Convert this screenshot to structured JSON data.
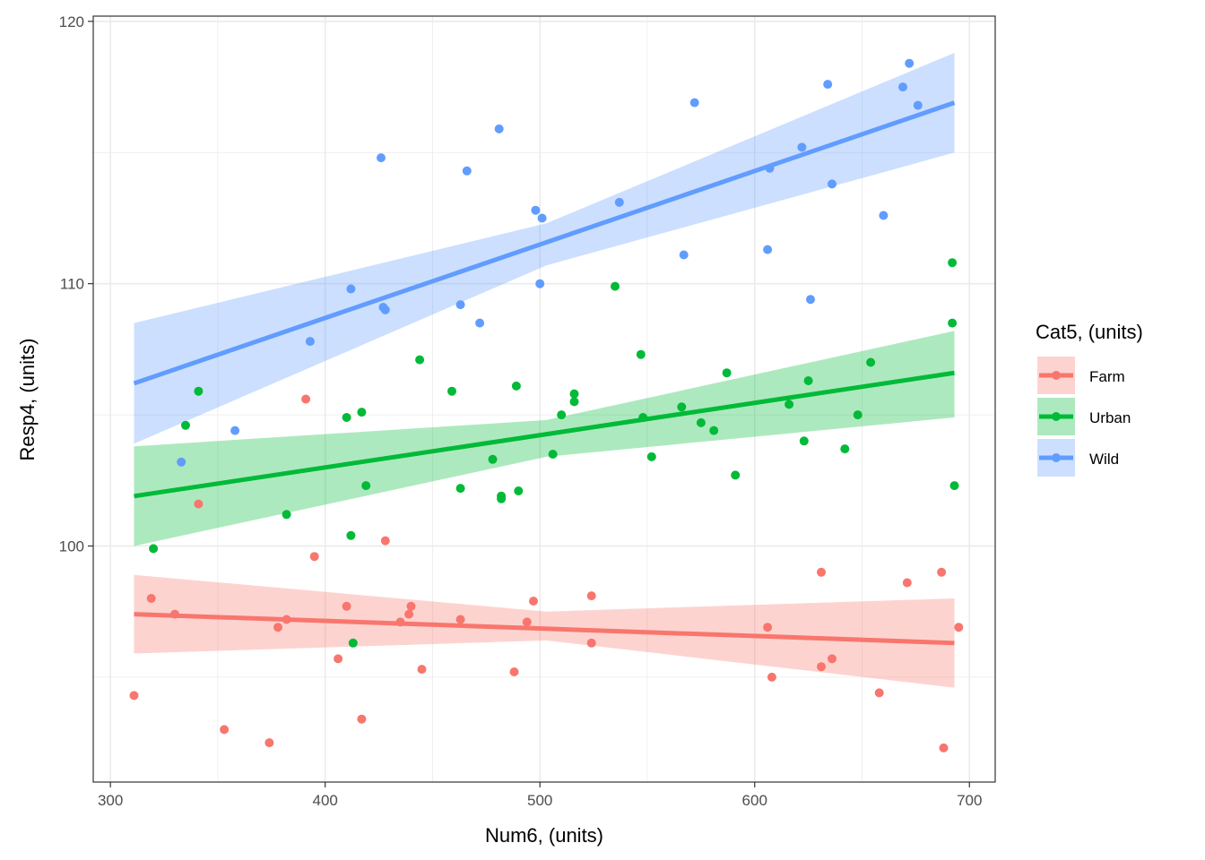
{
  "chart_data": {
    "type": "scatter",
    "title": "",
    "xlabel": "Num6, (units)",
    "ylabel": "Resp4, (units)",
    "xlim": [
      292,
      712
    ],
    "ylim": [
      91,
      120.2
    ],
    "x_ticks": [
      300,
      400,
      500,
      600,
      700
    ],
    "y_ticks": [
      100,
      110,
      120
    ],
    "grid": true,
    "legend": {
      "title": "Cat5, (units)",
      "position": "right"
    },
    "series": [
      {
        "name": "Farm",
        "color": "#F8766D",
        "fit": {
          "x": [
            311,
            693
          ],
          "y": [
            97.4,
            96.3
          ]
        },
        "band": {
          "x": [
            311,
            503,
            693
          ],
          "lower": [
            95.9,
            96.4,
            94.6
          ],
          "upper": [
            98.9,
            97.5,
            98.0
          ]
        },
        "points": [
          [
            311,
            94.3
          ],
          [
            319,
            98.0
          ],
          [
            330,
            97.4
          ],
          [
            353,
            93.0
          ],
          [
            374,
            92.5
          ],
          [
            378,
            96.9
          ],
          [
            382,
            97.2
          ],
          [
            391,
            105.6
          ],
          [
            395,
            99.6
          ],
          [
            406,
            95.7
          ],
          [
            410,
            97.7
          ],
          [
            417,
            93.4
          ],
          [
            428,
            100.2
          ],
          [
            435,
            97.1
          ],
          [
            439,
            97.4
          ],
          [
            440,
            97.7
          ],
          [
            445,
            95.3
          ],
          [
            463,
            97.2
          ],
          [
            488,
            95.2
          ],
          [
            494,
            97.1
          ],
          [
            497,
            97.9
          ],
          [
            524,
            98.1
          ],
          [
            524,
            96.3
          ],
          [
            606,
            96.9
          ],
          [
            608,
            95.0
          ],
          [
            631,
            95.4
          ],
          [
            631,
            99.0
          ],
          [
            636,
            95.7
          ],
          [
            658,
            94.4
          ],
          [
            671,
            98.6
          ],
          [
            687,
            99.0
          ],
          [
            688,
            92.3
          ],
          [
            695,
            96.9
          ],
          [
            341,
            101.6
          ]
        ]
      },
      {
        "name": "Urban",
        "color": "#00BA38",
        "fit": {
          "x": [
            311,
            693
          ],
          "y": [
            101.9,
            106.6
          ]
        },
        "band": {
          "x": [
            311,
            503,
            693
          ],
          "lower": [
            100.0,
            103.4,
            104.9
          ],
          "upper": [
            103.8,
            104.8,
            108.2
          ]
        },
        "points": [
          [
            320,
            99.9
          ],
          [
            335,
            104.6
          ],
          [
            341,
            105.9
          ],
          [
            382,
            101.2
          ],
          [
            410,
            104.9
          ],
          [
            412,
            100.4
          ],
          [
            413,
            96.3
          ],
          [
            417,
            105.1
          ],
          [
            419,
            102.3
          ],
          [
            444,
            107.1
          ],
          [
            459,
            105.9
          ],
          [
            463,
            102.2
          ],
          [
            478,
            103.3
          ],
          [
            482,
            101.8
          ],
          [
            482,
            101.9
          ],
          [
            489,
            106.1
          ],
          [
            490,
            102.1
          ],
          [
            506,
            103.5
          ],
          [
            510,
            105.0
          ],
          [
            516,
            105.8
          ],
          [
            516,
            105.5
          ],
          [
            535,
            109.9
          ],
          [
            547,
            107.3
          ],
          [
            548,
            104.9
          ],
          [
            552,
            103.4
          ],
          [
            566,
            105.3
          ],
          [
            575,
            104.7
          ],
          [
            581,
            104.4
          ],
          [
            587,
            106.6
          ],
          [
            591,
            102.7
          ],
          [
            616,
            105.4
          ],
          [
            623,
            104.0
          ],
          [
            625,
            106.3
          ],
          [
            642,
            103.7
          ],
          [
            648,
            105.0
          ],
          [
            654,
            107.0
          ],
          [
            692,
            108.5
          ],
          [
            692,
            110.8
          ],
          [
            693,
            102.3
          ]
        ]
      },
      {
        "name": "Wild",
        "color": "#619CFF",
        "fit": {
          "x": [
            311,
            693
          ],
          "y": [
            106.2,
            116.9
          ]
        },
        "band": {
          "x": [
            311,
            503,
            693
          ],
          "lower": [
            103.9,
            110.7,
            115.0
          ],
          "upper": [
            108.5,
            112.3,
            118.8
          ]
        },
        "points": [
          [
            333,
            103.2
          ],
          [
            358,
            104.4
          ],
          [
            393,
            107.8
          ],
          [
            412,
            109.8
          ],
          [
            426,
            114.8
          ],
          [
            427,
            109.1
          ],
          [
            428,
            109.0
          ],
          [
            463,
            109.2
          ],
          [
            466,
            114.3
          ],
          [
            472,
            108.5
          ],
          [
            481,
            115.9
          ],
          [
            498,
            112.8
          ],
          [
            500,
            110.0
          ],
          [
            501,
            112.5
          ],
          [
            537,
            113.1
          ],
          [
            567,
            111.1
          ],
          [
            572,
            116.9
          ],
          [
            606,
            111.3
          ],
          [
            607,
            114.4
          ],
          [
            622,
            115.2
          ],
          [
            626,
            109.4
          ],
          [
            634,
            117.6
          ],
          [
            636,
            113.8
          ],
          [
            660,
            112.6
          ],
          [
            669,
            117.5
          ],
          [
            672,
            118.4
          ],
          [
            676,
            116.8
          ]
        ]
      }
    ]
  }
}
